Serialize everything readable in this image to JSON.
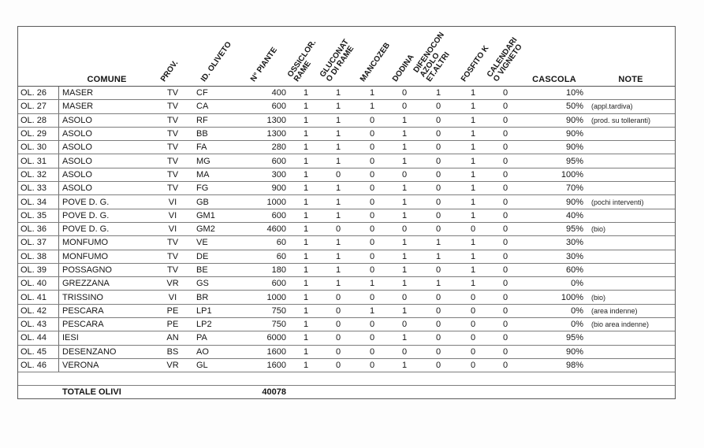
{
  "colors": {
    "border": "#7d7d7d",
    "outer_border": "#5a5a5a",
    "text": "#161616",
    "background": "#ffffff"
  },
  "table": {
    "columns": {
      "comune": "COMUNE",
      "prov": "PROV.",
      "oliveto": "ID. OLIVETO",
      "piante": "N° PIANTE",
      "ossiclor": "OSSICLOR.\nRAME",
      "gluconato": "GLUCONAT\nO DI RAME",
      "mancozeb": "MANCOZEB",
      "dodina": "DODINA",
      "difenoconazolo": "DIFENOCON\nAZOLO\nET.ALTRI",
      "fosfito": "FOSFITO K",
      "calendario": "CALENDARI\nO VIGNETO",
      "cascola": "CASCOLA",
      "note": "NOTE"
    },
    "rows": [
      {
        "id": "OL. 26",
        "comune": "MASER",
        "prov": "TV",
        "oliveto": "CF",
        "piante": "400",
        "ossiclor": "1",
        "gluconato": "1",
        "mancozeb": "1",
        "dodina": "0",
        "difenoconazolo": "1",
        "fosfito": "1",
        "calendario": "0",
        "cascola": "10%",
        "note": ""
      },
      {
        "id": "OL. 27",
        "comune": "MASER",
        "prov": "TV",
        "oliveto": "CA",
        "piante": "600",
        "ossiclor": "1",
        "gluconato": "1",
        "mancozeb": "1",
        "dodina": "0",
        "difenoconazolo": "0",
        "fosfito": "1",
        "calendario": "0",
        "cascola": "50%",
        "note": "(appl.tardiva)"
      },
      {
        "id": "OL. 28",
        "comune": "ASOLO",
        "prov": "TV",
        "oliveto": "RF",
        "piante": "1300",
        "ossiclor": "1",
        "gluconato": "1",
        "mancozeb": "0",
        "dodina": "1",
        "difenoconazolo": "0",
        "fosfito": "1",
        "calendario": "0",
        "cascola": "90%",
        "note": "(prod. su tolleranti)"
      },
      {
        "id": "OL. 29",
        "comune": "ASOLO",
        "prov": "TV",
        "oliveto": "BB",
        "piante": "1300",
        "ossiclor": "1",
        "gluconato": "1",
        "mancozeb": "0",
        "dodina": "1",
        "difenoconazolo": "0",
        "fosfito": "1",
        "calendario": "0",
        "cascola": "90%",
        "note": ""
      },
      {
        "id": "OL. 30",
        "comune": "ASOLO",
        "prov": "TV",
        "oliveto": "FA",
        "piante": "280",
        "ossiclor": "1",
        "gluconato": "1",
        "mancozeb": "0",
        "dodina": "1",
        "difenoconazolo": "0",
        "fosfito": "1",
        "calendario": "0",
        "cascola": "90%",
        "note": ""
      },
      {
        "id": "OL. 31",
        "comune": "ASOLO",
        "prov": "TV",
        "oliveto": "MG",
        "piante": "600",
        "ossiclor": "1",
        "gluconato": "1",
        "mancozeb": "0",
        "dodina": "1",
        "difenoconazolo": "0",
        "fosfito": "1",
        "calendario": "0",
        "cascola": "95%",
        "note": ""
      },
      {
        "id": "OL. 32",
        "comune": "ASOLO",
        "prov": "TV",
        "oliveto": "MA",
        "piante": "300",
        "ossiclor": "1",
        "gluconato": "0",
        "mancozeb": "0",
        "dodina": "0",
        "difenoconazolo": "0",
        "fosfito": "1",
        "calendario": "0",
        "cascola": "100%",
        "note": ""
      },
      {
        "id": "OL. 33",
        "comune": "ASOLO",
        "prov": "TV",
        "oliveto": "FG",
        "piante": "900",
        "ossiclor": "1",
        "gluconato": "1",
        "mancozeb": "0",
        "dodina": "1",
        "difenoconazolo": "0",
        "fosfito": "1",
        "calendario": "0",
        "cascola": "70%",
        "note": ""
      },
      {
        "id": "OL. 34",
        "comune": "POVE D. G.",
        "prov": "VI",
        "oliveto": "GB",
        "piante": "1000",
        "ossiclor": "1",
        "gluconato": "1",
        "mancozeb": "0",
        "dodina": "1",
        "difenoconazolo": "0",
        "fosfito": "1",
        "calendario": "0",
        "cascola": "90%",
        "note": "(pochi interventi)"
      },
      {
        "id": "OL. 35",
        "comune": "POVE D. G.",
        "prov": "VI",
        "oliveto": "GM1",
        "piante": "600",
        "ossiclor": "1",
        "gluconato": "1",
        "mancozeb": "0",
        "dodina": "1",
        "difenoconazolo": "0",
        "fosfito": "1",
        "calendario": "0",
        "cascola": "40%",
        "note": ""
      },
      {
        "id": "OL. 36",
        "comune": "POVE D. G.",
        "prov": "VI",
        "oliveto": "GM2",
        "piante": "4600",
        "ossiclor": "1",
        "gluconato": "0",
        "mancozeb": "0",
        "dodina": "0",
        "difenoconazolo": "0",
        "fosfito": "0",
        "calendario": "0",
        "cascola": "95%",
        "note": "(bio)"
      },
      {
        "id": "OL. 37",
        "comune": "MONFUMO",
        "prov": "TV",
        "oliveto": "VE",
        "piante": "60",
        "ossiclor": "1",
        "gluconato": "1",
        "mancozeb": "0",
        "dodina": "1",
        "difenoconazolo": "1",
        "fosfito": "1",
        "calendario": "0",
        "cascola": "30%",
        "note": ""
      },
      {
        "id": "OL. 38",
        "comune": "MONFUMO",
        "prov": "TV",
        "oliveto": "DE",
        "piante": "60",
        "ossiclor": "1",
        "gluconato": "1",
        "mancozeb": "0",
        "dodina": "1",
        "difenoconazolo": "1",
        "fosfito": "1",
        "calendario": "0",
        "cascola": "30%",
        "note": ""
      },
      {
        "id": "OL. 39",
        "comune": "POSSAGNO",
        "prov": "TV",
        "oliveto": "BE",
        "piante": "180",
        "ossiclor": "1",
        "gluconato": "1",
        "mancozeb": "0",
        "dodina": "1",
        "difenoconazolo": "0",
        "fosfito": "1",
        "calendario": "0",
        "cascola": "60%",
        "note": ""
      },
      {
        "id": "OL. 40",
        "comune": "GREZZANA",
        "prov": "VR",
        "oliveto": "GS",
        "piante": "600",
        "ossiclor": "1",
        "gluconato": "1",
        "mancozeb": "1",
        "dodina": "1",
        "difenoconazolo": "1",
        "fosfito": "1",
        "calendario": "0",
        "cascola": "0%",
        "note": ""
      },
      {
        "id": "OL. 41",
        "comune": "TRISSINO",
        "prov": "VI",
        "oliveto": "BR",
        "piante": "1000",
        "ossiclor": "1",
        "gluconato": "0",
        "mancozeb": "0",
        "dodina": "0",
        "difenoconazolo": "0",
        "fosfito": "0",
        "calendario": "0",
        "cascola": "100%",
        "note": "(bio)"
      },
      {
        "id": "OL. 42",
        "comune": "PESCARA",
        "prov": "PE",
        "oliveto": "LP1",
        "piante": "750",
        "ossiclor": "1",
        "gluconato": "0",
        "mancozeb": "1",
        "dodina": "1",
        "difenoconazolo": "0",
        "fosfito": "0",
        "calendario": "0",
        "cascola": "0%",
        "note": "(area indenne)"
      },
      {
        "id": "OL. 43",
        "comune": "PESCARA",
        "prov": "PE",
        "oliveto": "LP2",
        "piante": "750",
        "ossiclor": "1",
        "gluconato": "0",
        "mancozeb": "0",
        "dodina": "0",
        "difenoconazolo": "0",
        "fosfito": "0",
        "calendario": "0",
        "cascola": "0%",
        "note": "(bio area indenne)"
      },
      {
        "id": "OL. 44",
        "comune": "IESI",
        "prov": "AN",
        "oliveto": "PA",
        "piante": "6000",
        "ossiclor": "1",
        "gluconato": "0",
        "mancozeb": "0",
        "dodina": "1",
        "difenoconazolo": "0",
        "fosfito": "0",
        "calendario": "0",
        "cascola": "95%",
        "note": ""
      },
      {
        "id": "OL. 45",
        "comune": "DESENZANO",
        "prov": "BS",
        "oliveto": "AO",
        "piante": "1600",
        "ossiclor": "1",
        "gluconato": "0",
        "mancozeb": "0",
        "dodina": "0",
        "difenoconazolo": "0",
        "fosfito": "0",
        "calendario": "0",
        "cascola": "90%",
        "note": ""
      },
      {
        "id": "OL. 46",
        "comune": "VERONA",
        "prov": "VR",
        "oliveto": "GL",
        "piante": "1600",
        "ossiclor": "1",
        "gluconato": "0",
        "mancozeb": "0",
        "dodina": "1",
        "difenoconazolo": "0",
        "fosfito": "0",
        "calendario": "0",
        "cascola": "98%",
        "note": ""
      }
    ],
    "total": {
      "label": "TOTALE OLIVI",
      "piante": "40078"
    }
  }
}
